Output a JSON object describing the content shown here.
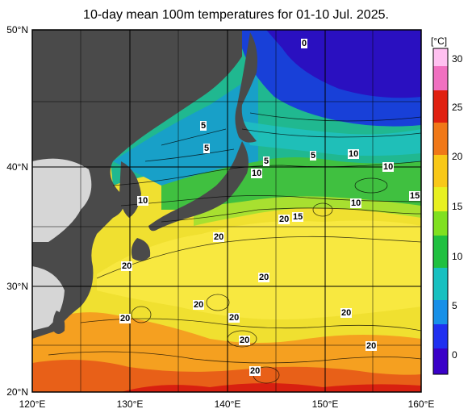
{
  "title": "10-day mean 100m temperatures for 01-10 Jul. 2025.",
  "axes": {
    "lat_labels": [
      "50°N",
      "40°N",
      "30°N",
      "20°N"
    ],
    "lon_labels": [
      "120°E",
      "130°E",
      "140°E",
      "150°E",
      "160°E"
    ]
  },
  "colorbar": {
    "unit": "[°C]",
    "ticks": [
      "30",
      "25",
      "20",
      "15",
      "10",
      "5",
      "0"
    ],
    "colors": [
      "#3a00c8",
      "#2030f0",
      "#1890e8",
      "#18c0c0",
      "#20c040",
      "#80e020",
      "#e8f020",
      "#f8c818",
      "#f07818",
      "#e02010",
      "#f070c0",
      "#ffc0f0"
    ]
  },
  "contour_labels": [
    "0",
    "5",
    "5",
    "5",
    "5",
    "10",
    "10",
    "10",
    "10",
    "10",
    "15",
    "15",
    "20",
    "20",
    "20",
    "20",
    "20",
    "20",
    "20",
    "20",
    "20",
    "20",
    "20"
  ],
  "colors": {
    "land": "#4a4a4a",
    "land_light": "#d6d6d6",
    "grid": "#000000"
  }
}
